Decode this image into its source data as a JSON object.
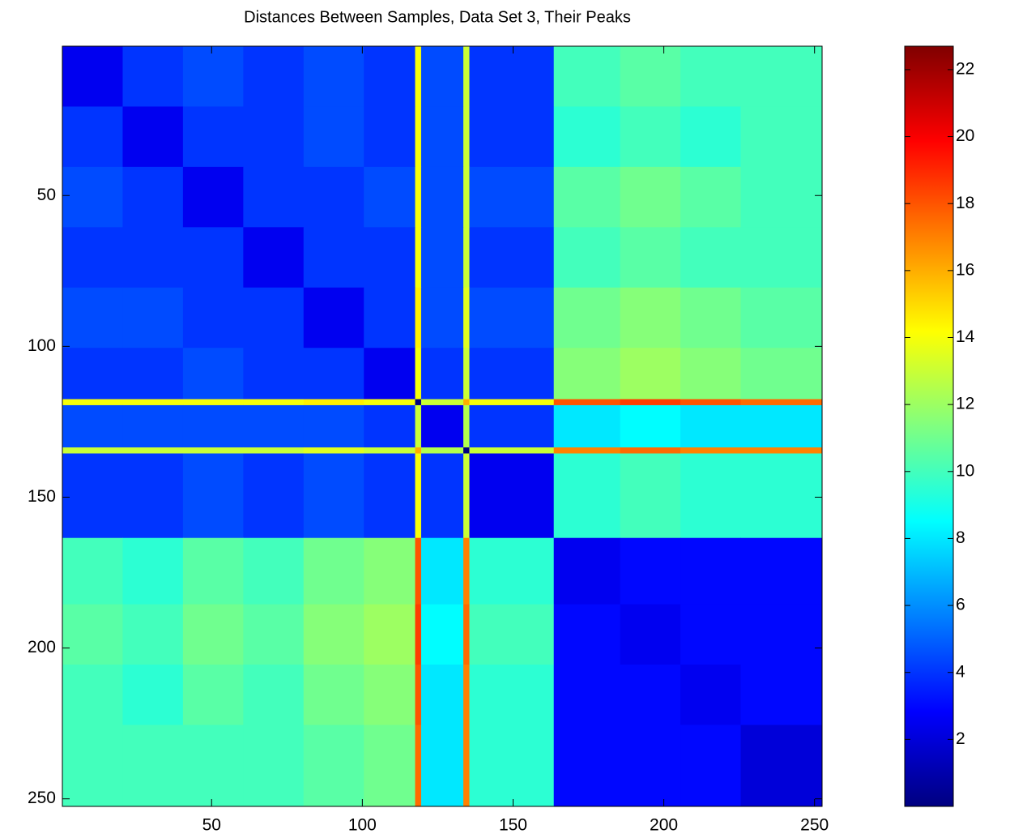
{
  "chart_data": {
    "type": "heatmap",
    "title": "Distances Between Samples, Data Set 3, Their Peaks",
    "colormap": "jet",
    "x_edges": [
      0.5,
      20.5,
      40.5,
      60.5,
      80.5,
      100.5,
      117.5,
      119.5,
      133.5,
      135.5,
      163.5,
      185.5,
      205.5,
      225.5,
      252.5
    ],
    "y_edges": [
      0.5,
      20.5,
      40.5,
      60.5,
      80.5,
      100.5,
      117.5,
      119.5,
      133.5,
      135.5,
      163.5,
      185.5,
      205.5,
      225.5,
      252.5
    ],
    "values": [
      [
        2.5,
        4,
        4.5,
        4,
        4.5,
        4,
        14,
        4.5,
        13,
        4,
        10,
        10.5,
        10,
        10
      ],
      [
        4,
        2.5,
        4,
        4,
        4.5,
        4,
        14,
        4.5,
        13,
        4,
        9.5,
        10,
        9.5,
        10
      ],
      [
        4.5,
        4,
        2.5,
        4,
        4,
        4.5,
        14,
        4.5,
        13,
        4.5,
        10.5,
        11,
        10.5,
        10
      ],
      [
        4,
        4,
        4,
        2.5,
        4,
        4,
        14,
        4.5,
        13,
        4,
        10,
        10.5,
        10,
        10
      ],
      [
        4.5,
        4.5,
        4,
        4,
        2.5,
        4,
        14.5,
        4.5,
        13.5,
        4.5,
        11,
        11.5,
        11,
        10.5
      ],
      [
        4,
        4,
        4.5,
        4,
        4,
        2.5,
        14,
        4,
        13,
        4,
        11.5,
        12,
        11.5,
        11
      ],
      [
        14,
        14,
        14,
        14,
        14.5,
        14,
        0,
        13,
        16,
        14,
        18,
        18.5,
        18,
        17.5
      ],
      [
        4.5,
        4.5,
        4.5,
        4.5,
        4.5,
        4,
        13,
        2.5,
        12.5,
        4,
        8,
        8.5,
        8,
        8
      ],
      [
        13,
        13,
        13,
        13,
        13.5,
        13,
        16,
        12.5,
        0,
        13,
        17,
        17.5,
        17,
        17
      ],
      [
        4,
        4,
        4.5,
        4,
        4.5,
        4,
        14,
        4,
        13,
        2.5,
        9.5,
        10,
        9.5,
        9.5
      ],
      [
        10,
        9.5,
        10.5,
        10,
        11,
        11.5,
        18,
        8,
        17,
        9.5,
        2.5,
        3,
        3,
        3
      ],
      [
        10.5,
        10,
        11,
        10.5,
        11.5,
        12,
        18.5,
        8.5,
        17.5,
        10,
        3,
        2.5,
        3,
        3
      ],
      [
        10,
        9.5,
        10.5,
        10,
        11,
        11.5,
        18,
        8,
        17,
        9.5,
        3,
        3,
        2.5,
        3
      ],
      [
        10,
        10,
        10,
        10,
        10.5,
        11,
        17.5,
        8,
        17,
        9.5,
        3,
        3,
        3,
        2
      ]
    ],
    "xlim": [
      0.5,
      252.5
    ],
    "ylim": [
      0.5,
      252.5
    ],
    "xticks": [
      50,
      100,
      150,
      200,
      250
    ],
    "yticks": [
      50,
      100,
      150,
      200,
      250
    ],
    "y_reversed": true,
    "clim": [
      0,
      22.7
    ],
    "cticks": [
      2,
      4,
      6,
      8,
      10,
      12,
      14,
      16,
      18,
      20,
      22
    ]
  }
}
